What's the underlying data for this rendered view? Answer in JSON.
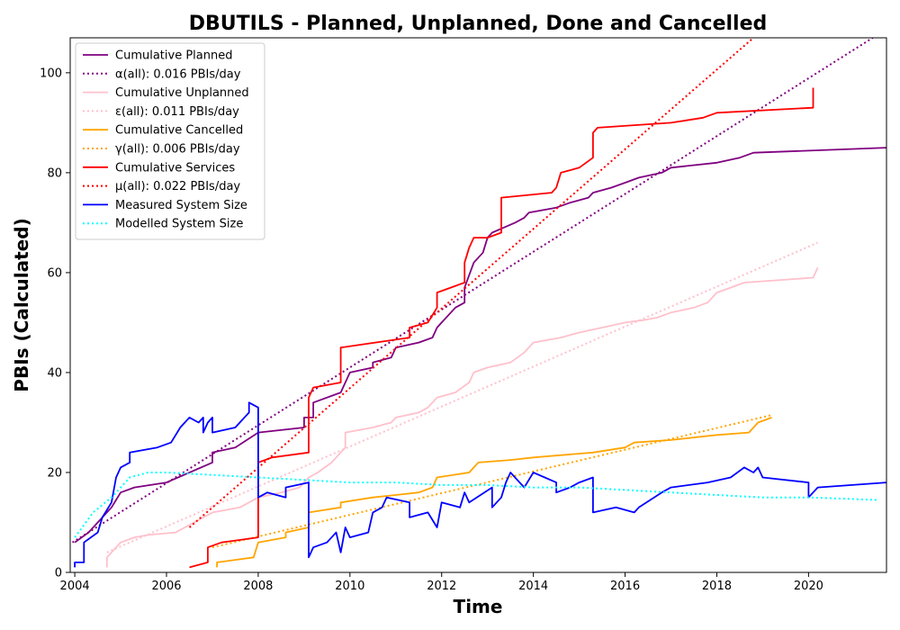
{
  "chart_data": {
    "type": "line",
    "title": "DBUTILS - Planned, Unplanned, Done  and Cancelled",
    "xlabel": "Time",
    "ylabel": "PBIs (Calculated)",
    "xlim": [
      2003.9,
      2021.7
    ],
    "ylim": [
      0,
      107
    ],
    "xticks": [
      2004,
      2006,
      2008,
      2010,
      2012,
      2014,
      2016,
      2018,
      2020
    ],
    "yticks": [
      0,
      20,
      40,
      60,
      80,
      100
    ],
    "grid": false,
    "legend_position": "top-left",
    "series": [
      {
        "name": "Cumulative Planned",
        "color": "#800080",
        "style": "solid",
        "points": [
          [
            2004.0,
            6
          ],
          [
            2004.3,
            8
          ],
          [
            2004.5,
            10
          ],
          [
            2004.8,
            13
          ],
          [
            2005.0,
            16
          ],
          [
            2005.3,
            17
          ],
          [
            2006.0,
            18
          ],
          [
            2006.5,
            20
          ],
          [
            2007.0,
            22
          ],
          [
            2007.0,
            24
          ],
          [
            2007.5,
            25
          ],
          [
            2008.0,
            28
          ],
          [
            2009.0,
            29
          ],
          [
            2009.0,
            31
          ],
          [
            2009.2,
            31
          ],
          [
            2009.2,
            34
          ],
          [
            2009.8,
            36
          ],
          [
            2010.0,
            40
          ],
          [
            2010.5,
            41
          ],
          [
            2010.5,
            42
          ],
          [
            2010.9,
            43
          ],
          [
            2011.0,
            45
          ],
          [
            2011.5,
            46
          ],
          [
            2011.8,
            47
          ],
          [
            2011.9,
            49
          ],
          [
            2012.0,
            50
          ],
          [
            2012.2,
            52
          ],
          [
            2012.3,
            53
          ],
          [
            2012.5,
            54
          ],
          [
            2012.5,
            57
          ],
          [
            2012.7,
            62
          ],
          [
            2012.9,
            64
          ],
          [
            2013.0,
            67
          ],
          [
            2013.1,
            68
          ],
          [
            2013.6,
            70
          ],
          [
            2013.8,
            71
          ],
          [
            2013.9,
            72
          ],
          [
            2014.5,
            73
          ],
          [
            2014.8,
            74
          ],
          [
            2015.2,
            75
          ],
          [
            2015.3,
            76
          ],
          [
            2015.7,
            77
          ],
          [
            2016.0,
            78
          ],
          [
            2016.3,
            79
          ],
          [
            2016.8,
            80
          ],
          [
            2017.0,
            81
          ],
          [
            2018.0,
            82
          ],
          [
            2018.5,
            83
          ],
          [
            2018.8,
            84
          ],
          [
            2021.7,
            85
          ]
        ]
      },
      {
        "name": "α(all): 0.016 PBIs/day",
        "color": "#800080",
        "style": "dotted",
        "points": [
          [
            2003.95,
            6
          ],
          [
            2021.4,
            107
          ]
        ]
      },
      {
        "name": "Cumulative Unplanned",
        "color": "#ffc0cb",
        "style": "solid",
        "points": [
          [
            2004.7,
            1
          ],
          [
            2004.7,
            3
          ],
          [
            2005.0,
            6
          ],
          [
            2005.3,
            7
          ],
          [
            2005.6,
            7.5
          ],
          [
            2006.2,
            8
          ],
          [
            2006.4,
            9
          ],
          [
            2006.6,
            10
          ],
          [
            2007.0,
            12
          ],
          [
            2007.6,
            13
          ],
          [
            2008.0,
            15
          ],
          [
            2008.5,
            16
          ],
          [
            2008.9,
            17
          ],
          [
            2009.1,
            19
          ],
          [
            2009.3,
            20
          ],
          [
            2009.6,
            22
          ],
          [
            2009.9,
            25
          ],
          [
            2009.9,
            28
          ],
          [
            2010.5,
            29
          ],
          [
            2010.9,
            30
          ],
          [
            2011.0,
            31
          ],
          [
            2011.5,
            32
          ],
          [
            2011.7,
            33
          ],
          [
            2011.9,
            35
          ],
          [
            2012.3,
            36
          ],
          [
            2012.6,
            38
          ],
          [
            2012.7,
            40
          ],
          [
            2013.0,
            41
          ],
          [
            2013.5,
            42
          ],
          [
            2013.8,
            44
          ],
          [
            2014.0,
            46
          ],
          [
            2014.6,
            47
          ],
          [
            2015.0,
            48
          ],
          [
            2015.5,
            49
          ],
          [
            2016.0,
            50
          ],
          [
            2016.4,
            50.5
          ],
          [
            2016.7,
            51
          ],
          [
            2017.0,
            52
          ],
          [
            2017.5,
            53
          ],
          [
            2017.8,
            54
          ],
          [
            2018.0,
            56
          ],
          [
            2018.3,
            57
          ],
          [
            2018.6,
            58
          ],
          [
            2020.1,
            59
          ],
          [
            2020.2,
            61
          ]
        ]
      },
      {
        "name": "ε(all): 0.011 PBIs/day",
        "color": "#ffc0cb",
        "style": "dotted",
        "points": [
          [
            2004.7,
            4
          ],
          [
            2020.2,
            66
          ]
        ]
      },
      {
        "name": "Cumulative Cancelled",
        "color": "#ffa500",
        "style": "solid",
        "points": [
          [
            2007.1,
            1
          ],
          [
            2007.1,
            2
          ],
          [
            2007.9,
            3
          ],
          [
            2008.0,
            6
          ],
          [
            2008.6,
            7
          ],
          [
            2008.6,
            8
          ],
          [
            2009.1,
            9
          ],
          [
            2009.1,
            12
          ],
          [
            2009.8,
            13
          ],
          [
            2009.8,
            14
          ],
          [
            2010.5,
            15
          ],
          [
            2011.0,
            15.5
          ],
          [
            2011.5,
            16
          ],
          [
            2011.8,
            17
          ],
          [
            2011.9,
            19
          ],
          [
            2012.6,
            20
          ],
          [
            2012.8,
            22
          ],
          [
            2013.5,
            22.5
          ],
          [
            2014.0,
            23
          ],
          [
            2015.3,
            24
          ],
          [
            2016.0,
            25
          ],
          [
            2016.2,
            26
          ],
          [
            2017.0,
            26.5
          ],
          [
            2018.0,
            27.5
          ],
          [
            2018.7,
            28
          ],
          [
            2018.8,
            29
          ],
          [
            2018.9,
            30
          ],
          [
            2019.2,
            31
          ]
        ]
      },
      {
        "name": "γ(all): 0.006 PBIs/day",
        "color": "#ffa500",
        "style": "dotted",
        "points": [
          [
            2007.0,
            5
          ],
          [
            2019.2,
            31.5
          ]
        ]
      },
      {
        "name": "Cumulative Services",
        "color": "#ff0000",
        "style": "solid",
        "points": [
          [
            2006.5,
            1
          ],
          [
            2006.9,
            2
          ],
          [
            2006.9,
            5
          ],
          [
            2007.2,
            6
          ],
          [
            2008.0,
            7
          ],
          [
            2008.0,
            22
          ],
          [
            2008.3,
            23
          ],
          [
            2009.1,
            24
          ],
          [
            2009.1,
            35
          ],
          [
            2009.2,
            37
          ],
          [
            2009.8,
            38
          ],
          [
            2009.8,
            45
          ],
          [
            2011.3,
            47
          ],
          [
            2011.3,
            49
          ],
          [
            2011.7,
            50
          ],
          [
            2011.9,
            53
          ],
          [
            2011.9,
            56
          ],
          [
            2012.5,
            58
          ],
          [
            2012.5,
            62
          ],
          [
            2012.6,
            65
          ],
          [
            2012.7,
            67
          ],
          [
            2013.0,
            67
          ],
          [
            2013.3,
            68
          ],
          [
            2013.3,
            75
          ],
          [
            2014.4,
            76
          ],
          [
            2014.5,
            77
          ],
          [
            2014.6,
            80
          ],
          [
            2015.0,
            81
          ],
          [
            2015.3,
            83
          ],
          [
            2015.3,
            88
          ],
          [
            2015.4,
            89
          ],
          [
            2017.0,
            90
          ],
          [
            2017.7,
            91
          ],
          [
            2018.0,
            92
          ],
          [
            2020.1,
            93
          ],
          [
            2020.1,
            97
          ]
        ]
      },
      {
        "name": "μ(all): 0.022 PBIs/day",
        "color": "#ff0000",
        "style": "dotted",
        "points": [
          [
            2006.5,
            9
          ],
          [
            2018.8,
            107
          ]
        ]
      },
      {
        "name": "Measured System Size",
        "color": "#0000ff",
        "style": "solid",
        "points": [
          [
            2004.0,
            1
          ],
          [
            2004.0,
            2
          ],
          [
            2004.2,
            2
          ],
          [
            2004.2,
            6
          ],
          [
            2004.5,
            8
          ],
          [
            2004.6,
            11
          ],
          [
            2004.8,
            14
          ],
          [
            2004.9,
            19
          ],
          [
            2005.0,
            21
          ],
          [
            2005.2,
            22
          ],
          [
            2005.2,
            24
          ],
          [
            2005.8,
            25
          ],
          [
            2006.1,
            26
          ],
          [
            2006.3,
            29
          ],
          [
            2006.5,
            31
          ],
          [
            2006.7,
            30
          ],
          [
            2006.8,
            31
          ],
          [
            2006.8,
            28
          ],
          [
            2006.9,
            30
          ],
          [
            2007.0,
            31
          ],
          [
            2007.0,
            28
          ],
          [
            2007.5,
            29
          ],
          [
            2007.7,
            31
          ],
          [
            2007.8,
            32
          ],
          [
            2007.8,
            34
          ],
          [
            2008.0,
            33
          ],
          [
            2008.0,
            15
          ],
          [
            2008.2,
            16
          ],
          [
            2008.6,
            15
          ],
          [
            2008.6,
            17
          ],
          [
            2009.1,
            18
          ],
          [
            2009.1,
            3
          ],
          [
            2009.2,
            5
          ],
          [
            2009.5,
            6
          ],
          [
            2009.7,
            8
          ],
          [
            2009.8,
            4
          ],
          [
            2009.9,
            9
          ],
          [
            2010.0,
            7
          ],
          [
            2010.4,
            8
          ],
          [
            2010.5,
            12
          ],
          [
            2010.7,
            13
          ],
          [
            2010.8,
            15
          ],
          [
            2011.3,
            14
          ],
          [
            2011.3,
            11
          ],
          [
            2011.7,
            12
          ],
          [
            2011.9,
            9
          ],
          [
            2012.0,
            14
          ],
          [
            2012.4,
            13
          ],
          [
            2012.5,
            16
          ],
          [
            2012.6,
            14
          ],
          [
            2013.1,
            17
          ],
          [
            2013.1,
            13
          ],
          [
            2013.3,
            15
          ],
          [
            2013.4,
            18
          ],
          [
            2013.5,
            20
          ],
          [
            2013.8,
            17
          ],
          [
            2014.0,
            20
          ],
          [
            2014.5,
            18
          ],
          [
            2014.5,
            16
          ],
          [
            2014.8,
            17
          ],
          [
            2015.0,
            18
          ],
          [
            2015.3,
            19
          ],
          [
            2015.3,
            12
          ],
          [
            2015.8,
            13
          ],
          [
            2016.2,
            12
          ],
          [
            2016.3,
            13
          ],
          [
            2016.8,
            16
          ],
          [
            2017.0,
            17
          ],
          [
            2017.8,
            18
          ],
          [
            2018.3,
            19
          ],
          [
            2018.6,
            21
          ],
          [
            2018.8,
            20
          ],
          [
            2018.9,
            21
          ],
          [
            2019.0,
            19
          ],
          [
            2020.0,
            18
          ],
          [
            2020.0,
            15
          ],
          [
            2020.2,
            17
          ],
          [
            2021.7,
            18
          ]
        ]
      },
      {
        "name": "Modelled System Size",
        "color": "#00ffff",
        "style": "dotted",
        "points": [
          [
            2004.0,
            7
          ],
          [
            2004.4,
            12
          ],
          [
            2004.8,
            15
          ],
          [
            2005.2,
            19
          ],
          [
            2005.6,
            20
          ],
          [
            2006.0,
            20
          ],
          [
            2007.0,
            19.5
          ],
          [
            2008.0,
            19
          ],
          [
            2009.0,
            18.5
          ],
          [
            2010.0,
            18
          ],
          [
            2011.0,
            18
          ],
          [
            2012.0,
            17.5
          ],
          [
            2013.0,
            17.5
          ],
          [
            2014.0,
            17
          ],
          [
            2015.0,
            17
          ],
          [
            2016.0,
            16.5
          ],
          [
            2017.0,
            16
          ],
          [
            2018.0,
            15.5
          ],
          [
            2019.0,
            15
          ],
          [
            2020.0,
            15
          ],
          [
            2021.5,
            14.5
          ]
        ]
      }
    ]
  }
}
